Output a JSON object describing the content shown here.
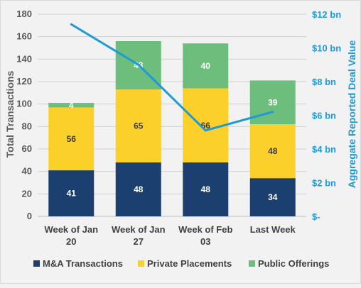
{
  "chart_data": {
    "type": "bar",
    "stacked": true,
    "categories": [
      "Week of Jan 20",
      "Week of Jan 27",
      "Week of Feb 03",
      "Last Week"
    ],
    "category_label_lines": [
      [
        "Week of Jan",
        "20"
      ],
      [
        "Week of Jan",
        "27"
      ],
      [
        "Week of Feb",
        "03"
      ],
      [
        "Last Week"
      ]
    ],
    "series": [
      {
        "name": "M&A Transactions",
        "values": [
          41,
          48,
          48,
          34
        ],
        "color": "#1b3f6e",
        "label_color": "#ffffff"
      },
      {
        "name": "Private Placements",
        "values": [
          56,
          65,
          66,
          48
        ],
        "color": "#fbd02a",
        "label_color": "#3a3a3a"
      },
      {
        "name": "Public Offerings",
        "values": [
          4,
          43,
          40,
          39
        ],
        "color": "#6dbd7c",
        "label_color": "#ffffff"
      }
    ],
    "line_series": {
      "axis": "right",
      "values": [
        11.4,
        9.0,
        5.1,
        6.2
      ],
      "color": "#1e9ad6"
    },
    "ylabel": "Total Transactions",
    "ylim": [
      0,
      180
    ],
    "yticks": [
      0,
      20,
      40,
      60,
      80,
      100,
      120,
      140,
      160,
      180
    ],
    "y2label": "Aggregate Reported Deal Value",
    "y2lim": [
      0,
      12
    ],
    "y2ticks": [
      0,
      2,
      4,
      6,
      8,
      10,
      12
    ],
    "y2ticklabels": [
      "$-",
      "$2 bn",
      "$4 bn",
      "$6 bn",
      "$8 bn",
      "$10 bn",
      "$12 bn"
    ],
    "grid": true,
    "legend_position": "bottom"
  }
}
